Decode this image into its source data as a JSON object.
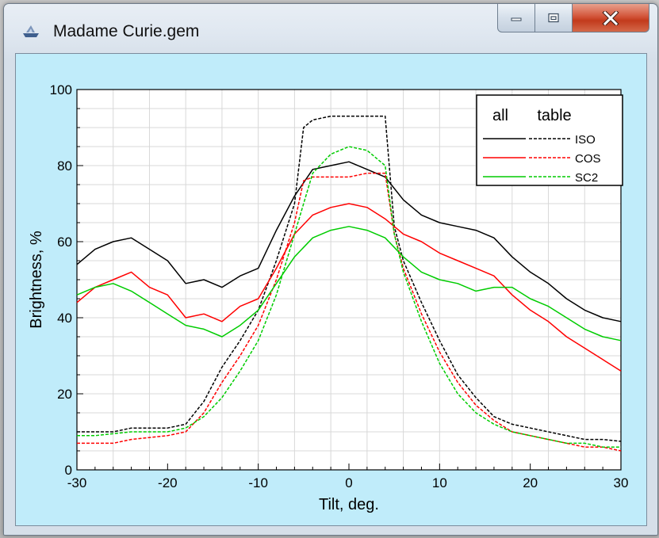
{
  "window": {
    "title": "Madame Curie.gem",
    "controls": {
      "minimize": "minimize",
      "maximize": "maximize",
      "close": "close"
    }
  },
  "colors": {
    "ISO": "#000000",
    "COS": "#ff0000",
    "SC2": "#00cc00",
    "background": "#c0ecfa"
  },
  "chart_data": {
    "type": "line",
    "xlabel": "Tilt, deg.",
    "ylabel": "Brightness, %",
    "xlim": [
      -30,
      30
    ],
    "ylim": [
      0,
      100
    ],
    "xticks": [
      "-30",
      "-20",
      "-10",
      "0",
      "10",
      "20",
      "30"
    ],
    "yticks": [
      "0",
      "20",
      "40",
      "60",
      "80",
      "100"
    ],
    "grid": true,
    "legend": {
      "placement": "top-right",
      "headers": [
        "all",
        "table"
      ],
      "entries": [
        "ISO",
        "COS",
        "SC2"
      ],
      "styles": [
        "solid",
        "dashed"
      ]
    },
    "series": [
      {
        "name": "ISO",
        "style": "solid",
        "x": [
          -30,
          -28,
          -26,
          -24,
          -22,
          -20,
          -18,
          -16,
          -14,
          -12,
          -10,
          -8,
          -6,
          -4,
          -2,
          0,
          2,
          4,
          6,
          8,
          10,
          12,
          14,
          16,
          18,
          20,
          22,
          24,
          26,
          28,
          30
        ],
        "y": [
          54,
          58,
          60,
          61,
          58,
          55,
          49,
          50,
          48,
          51,
          53,
          63,
          72,
          79,
          80,
          81,
          79,
          77,
          71,
          67,
          65,
          64,
          63,
          61,
          56,
          52,
          49,
          45,
          42,
          40,
          39
        ]
      },
      {
        "name": "ISO",
        "style": "dashed",
        "x": [
          -30,
          -28,
          -26,
          -24,
          -22,
          -20,
          -18,
          -16,
          -14,
          -12,
          -10,
          -8,
          -6,
          -5,
          -4,
          -2,
          0,
          2,
          4,
          5,
          6,
          8,
          10,
          12,
          14,
          16,
          18,
          20,
          22,
          24,
          26,
          28,
          30
        ],
        "y": [
          10,
          10,
          10,
          11,
          11,
          11,
          12,
          18,
          27,
          34,
          42,
          55,
          70,
          90,
          92,
          93,
          93,
          93,
          93,
          64,
          55,
          44,
          34,
          25,
          19,
          14,
          12,
          11,
          10,
          9,
          8,
          8,
          7.5
        ]
      },
      {
        "name": "COS",
        "style": "solid",
        "x": [
          -30,
          -28,
          -26,
          -24,
          -22,
          -20,
          -18,
          -16,
          -14,
          -12,
          -10,
          -8,
          -6,
          -4,
          -2,
          0,
          2,
          4,
          6,
          8,
          10,
          12,
          14,
          16,
          18,
          20,
          22,
          24,
          26,
          28,
          30
        ],
        "y": [
          44,
          48,
          50,
          52,
          48,
          46,
          40,
          41,
          39,
          43,
          45,
          53,
          62,
          67,
          69,
          70,
          69,
          66,
          62,
          60,
          57,
          55,
          53,
          51,
          46,
          42,
          39,
          35,
          32,
          29,
          26
        ]
      },
      {
        "name": "COS",
        "style": "dashed",
        "x": [
          -30,
          -28,
          -26,
          -24,
          -22,
          -20,
          -18,
          -16,
          -14,
          -12,
          -10,
          -8,
          -6,
          -5,
          -4,
          -2,
          0,
          2,
          4,
          5,
          6,
          8,
          10,
          12,
          14,
          16,
          18,
          20,
          22,
          24,
          26,
          28,
          30
        ],
        "y": [
          7,
          7,
          7,
          8,
          8.5,
          9,
          10,
          15,
          23,
          30,
          38,
          50,
          65,
          76,
          77,
          77,
          77,
          78,
          78,
          62,
          53,
          41,
          31,
          23,
          17,
          13,
          10,
          9,
          8,
          7,
          6,
          6,
          5
        ]
      },
      {
        "name": "SC2",
        "style": "solid",
        "x": [
          -30,
          -28,
          -26,
          -24,
          -22,
          -20,
          -18,
          -16,
          -14,
          -12,
          -10,
          -8,
          -6,
          -4,
          -2,
          0,
          2,
          4,
          6,
          8,
          10,
          12,
          14,
          16,
          18,
          20,
          22,
          24,
          26,
          28,
          30
        ],
        "y": [
          46,
          48,
          49,
          47,
          44,
          41,
          38,
          37,
          35,
          38,
          42,
          49,
          56,
          61,
          63,
          64,
          63,
          61,
          56,
          52,
          50,
          49,
          47,
          48,
          48,
          45,
          43,
          40,
          37,
          35,
          34
        ]
      },
      {
        "name": "SC2",
        "style": "dashed",
        "x": [
          -30,
          -28,
          -26,
          -24,
          -22,
          -20,
          -18,
          -16,
          -14,
          -12,
          -10,
          -8,
          -6,
          -4,
          -2,
          0,
          2,
          4,
          5,
          6,
          8,
          10,
          12,
          14,
          16,
          18,
          20,
          22,
          24,
          26,
          28,
          30
        ],
        "y": [
          9,
          9,
          9.5,
          10,
          10,
          10,
          11,
          14,
          19,
          26,
          34,
          46,
          62,
          78,
          83,
          85,
          84,
          80,
          62,
          52,
          39,
          28,
          20,
          15,
          12,
          10,
          9,
          8,
          7,
          7,
          6,
          6
        ]
      }
    ]
  }
}
